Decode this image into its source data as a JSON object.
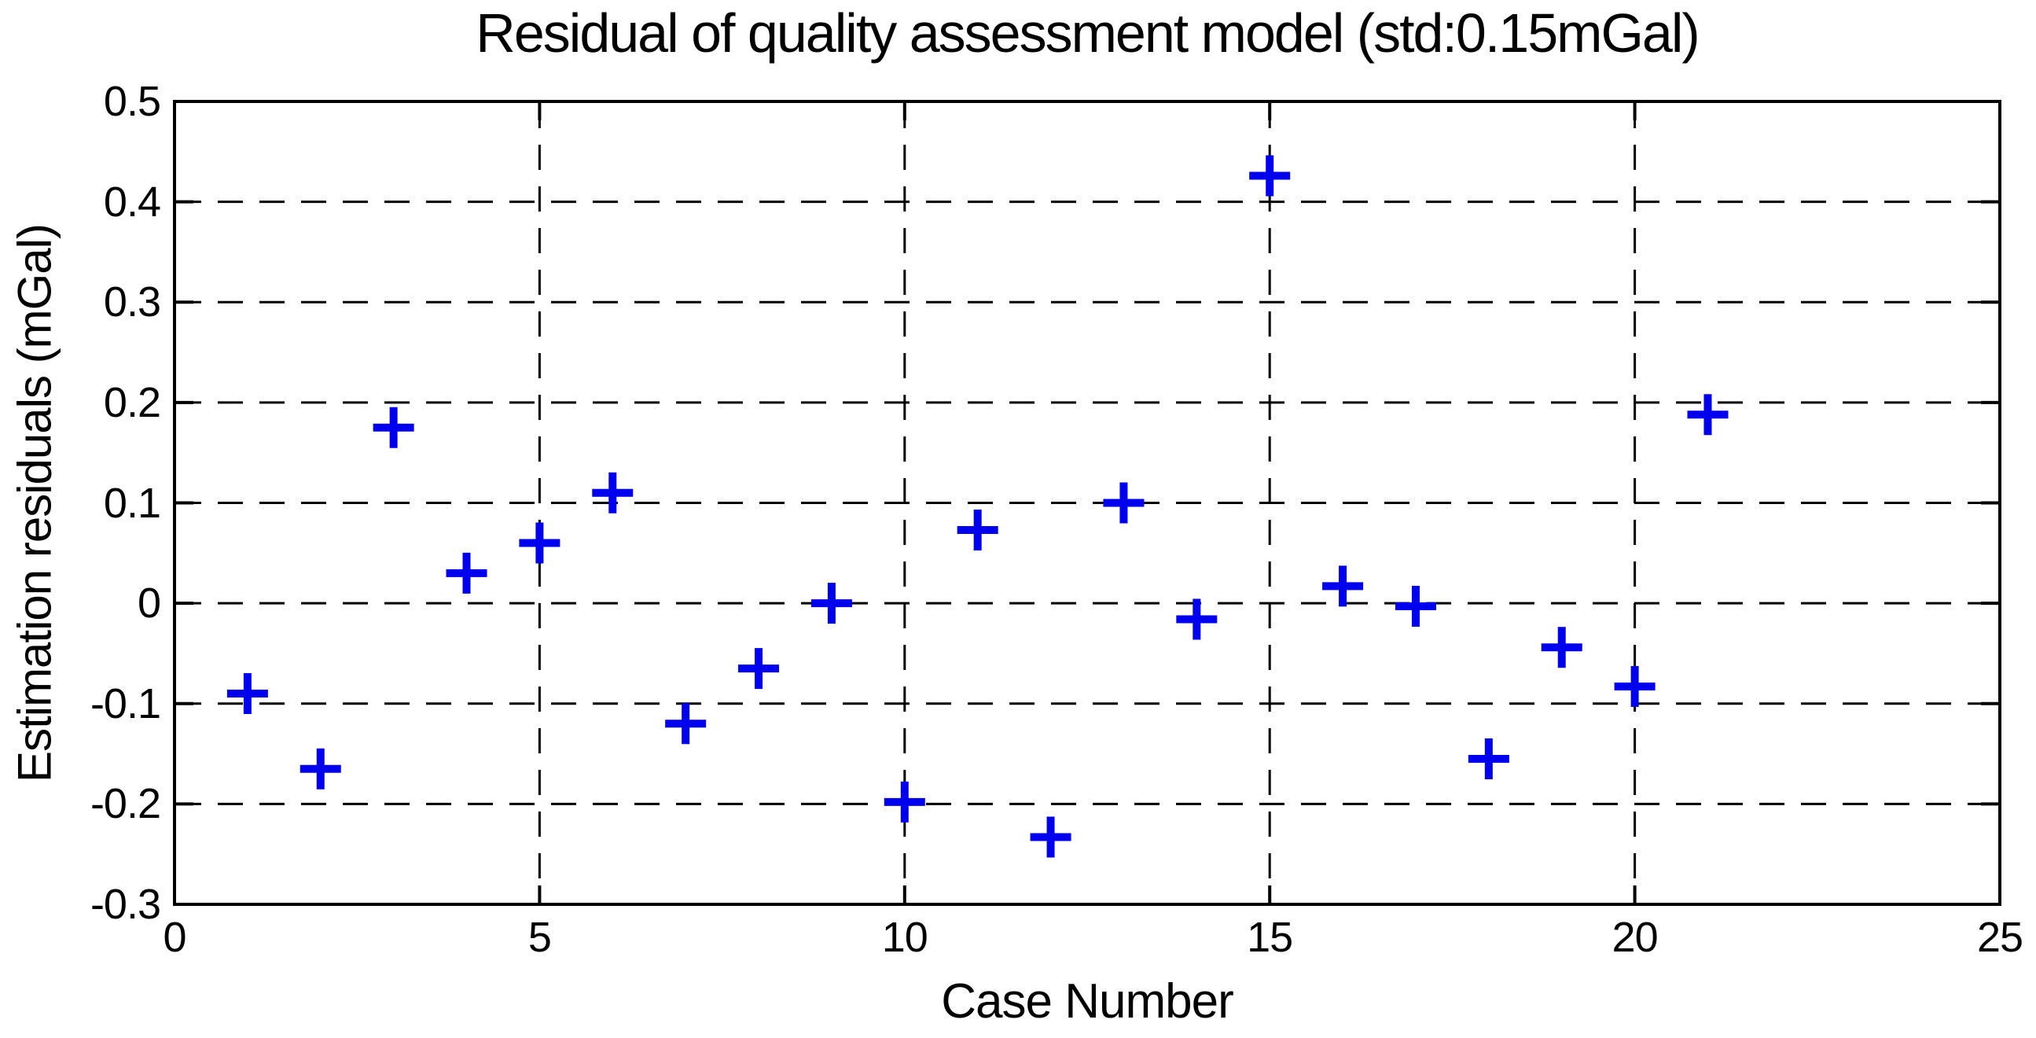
{
  "title": "Residual of quality assessment model (std:0.15mGal)",
  "chart_data": {
    "type": "scatter",
    "title": "Residual of quality assessment model (std:0.15mGal)",
    "xlabel": "Case Number",
    "ylabel": "Estimation residuals (mGal)",
    "xlim": [
      0,
      25
    ],
    "ylim": [
      -0.3,
      0.5
    ],
    "x_ticks": [
      0,
      5,
      10,
      15,
      20,
      25
    ],
    "x_tick_labels": [
      "0",
      "5",
      "10",
      "15",
      "20",
      "25"
    ],
    "y_ticks": [
      0.5,
      0.4,
      0.3,
      0.2,
      0.1,
      0,
      -0.1,
      -0.2,
      -0.3
    ],
    "y_tick_labels": [
      "0.5",
      "0.4",
      "0.3",
      "0.2",
      "0.1",
      "0",
      "-0.1",
      "-0.2",
      "-0.3"
    ],
    "grid": true,
    "grid_style": "dashed",
    "legend": "none",
    "marker": "plus",
    "marker_color": "#0000ee",
    "axis_color": "#000000",
    "x": [
      1,
      2,
      3,
      4,
      5,
      6,
      7,
      8,
      9,
      10,
      11,
      12,
      13,
      14,
      15,
      16,
      17,
      18,
      19,
      20,
      21
    ],
    "y": [
      -0.09,
      -0.165,
      0.175,
      0.03,
      0.06,
      0.11,
      -0.12,
      -0.065,
      0.0,
      -0.198,
      0.073,
      -0.233,
      0.1,
      -0.016,
      0.426,
      0.017,
      -0.003,
      -0.155,
      -0.044,
      -0.083,
      0.188
    ]
  }
}
